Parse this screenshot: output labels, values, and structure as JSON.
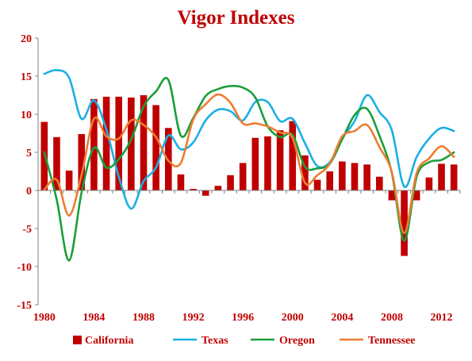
{
  "chart_data": {
    "type": "bar+line",
    "title": "Vigor Indexes",
    "xlabel": "",
    "ylabel": "",
    "x": [
      1980,
      1981,
      1982,
      1983,
      1984,
      1985,
      1986,
      1987,
      1988,
      1989,
      1990,
      1991,
      1992,
      1993,
      1994,
      1995,
      1996,
      1997,
      1998,
      1999,
      2000,
      2001,
      2002,
      2003,
      2004,
      2005,
      2006,
      2007,
      2008,
      2009,
      2010,
      2011,
      2012,
      2013
    ],
    "xlim": [
      1980,
      2013
    ],
    "ylim": [
      -15,
      20
    ],
    "x_ticks": [
      "1980",
      "1984",
      "1988",
      "1992",
      "1996",
      "2000",
      "2004",
      "2008",
      "2012"
    ],
    "y_ticks": [
      "20",
      "15",
      "10",
      "5",
      "0",
      "-5",
      "-10",
      "-15"
    ],
    "grid": false,
    "legend_position": "bottom",
    "bar_series": {
      "name": "California",
      "color": "#C00000",
      "values": [
        9.0,
        7.0,
        2.6,
        7.4,
        12.0,
        12.3,
        12.3,
        12.2,
        12.5,
        11.2,
        8.2,
        2.1,
        0.2,
        -0.7,
        0.6,
        2.0,
        3.6,
        6.9,
        7.1,
        7.9,
        9.1,
        4.6,
        1.4,
        2.5,
        3.8,
        3.6,
        3.4,
        1.8,
        -1.3,
        -8.6,
        -1.3,
        1.7,
        3.5,
        3.4
      ]
    },
    "line_series": [
      {
        "name": "Texas",
        "color": "#1AAFE6",
        "values": [
          15.3,
          15.8,
          14.8,
          9.4,
          11.8,
          8.0,
          1.8,
          -2.4,
          1.2,
          3.0,
          7.2,
          5.4,
          6.3,
          9.2,
          10.6,
          10.4,
          9.2,
          11.6,
          11.6,
          9.1,
          9.4,
          6.2,
          3.2,
          3.7,
          6.8,
          9.1,
          12.5,
          10.3,
          7.9,
          0.5,
          4.4,
          6.8,
          8.2,
          7.8
        ]
      },
      {
        "name": "Oregon",
        "color": "#1A9E3A",
        "values": [
          5.0,
          -1.2,
          -9.2,
          -0.3,
          5.6,
          3.0,
          4.1,
          6.7,
          11.0,
          13.0,
          14.5,
          7.2,
          9.5,
          12.4,
          13.3,
          13.7,
          13.5,
          12.2,
          8.4,
          7.0,
          7.3,
          3.1,
          2.9,
          3.5,
          6.7,
          9.9,
          10.7,
          7.2,
          2.3,
          -6.6,
          1.8,
          3.7,
          4.0,
          5.0
        ]
      },
      {
        "name": "Tennessee",
        "color": "#ED7D31",
        "values": [
          0.1,
          1.4,
          -3.3,
          2.0,
          9.4,
          7.1,
          6.8,
          9.2,
          8.6,
          7.0,
          3.9,
          3.6,
          9.3,
          11.3,
          12.6,
          11.5,
          8.8,
          8.8,
          8.4,
          7.6,
          6.9,
          1.0,
          2.0,
          3.5,
          7.1,
          7.8,
          8.6,
          5.7,
          2.4,
          -5.6,
          2.3,
          4.2,
          5.8,
          4.4
        ]
      }
    ]
  }
}
